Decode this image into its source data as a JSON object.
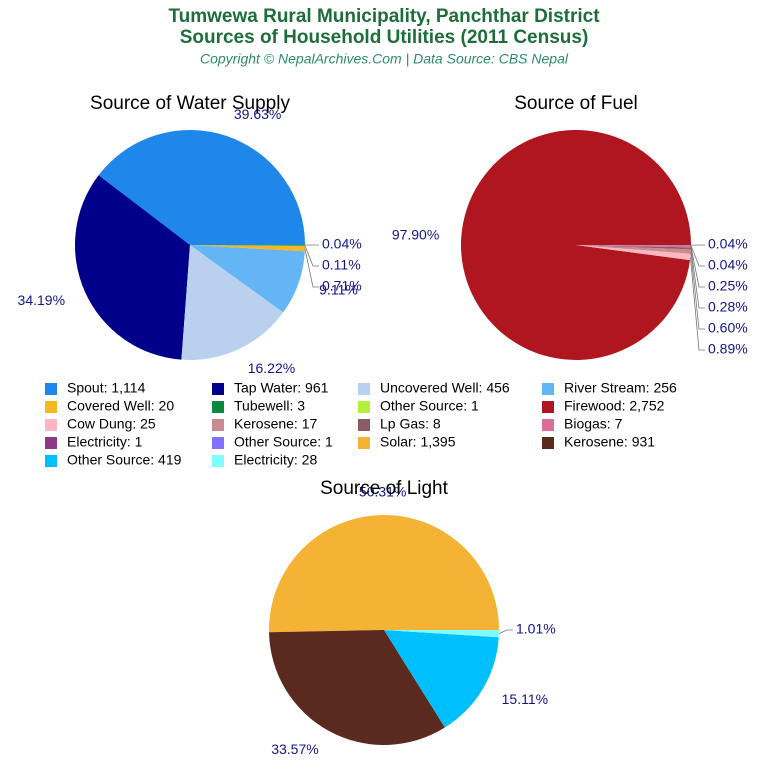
{
  "header": {
    "title": [
      "Tumwewa Rural Municipality, Panchthar District",
      "Sources of Household Utilities (2011 Census)"
    ],
    "subtitle": "Copyright © NepalArchives.Com | Data Source: CBS Nepal"
  },
  "chart_data": [
    {
      "type": "pie",
      "title": "Source of Water Supply",
      "categories": [
        "Spout: 1,114",
        "Tap Water: 961",
        "Uncovered Well: 456",
        "River Stream: 256",
        "Covered Well: 20",
        "Tubewell: 3",
        "Other Source: 1"
      ],
      "values": [
        39.63,
        34.19,
        16.22,
        9.11,
        0.71,
        0.11,
        0.04
      ],
      "value_labels": [
        "39.63%",
        "34.19%",
        "16.22%",
        "9.11%",
        "0.71%",
        "0.11%",
        "0.04%"
      ],
      "colors": [
        "#1f87ea",
        "#00008b",
        "#b9d1ee",
        "#64b5f6",
        "#f5b820",
        "#0b8a3e",
        "#b5ef3a"
      ]
    },
    {
      "type": "pie",
      "title": "Source of Fuel",
      "categories": [
        "Firewood: 2,752",
        "Cow Dung: 25",
        "Kerosene: 17",
        "Lp Gas: 8",
        "Biogas: 7",
        "Electricity: 1",
        "Other Source: 1"
      ],
      "values": [
        97.9,
        0.89,
        0.6,
        0.28,
        0.25,
        0.04,
        0.04
      ],
      "value_labels": [
        "97.90%",
        "0.89%",
        "0.60%",
        "0.28%",
        "0.25%",
        "0.04%",
        "0.04%"
      ],
      "colors": [
        "#b0161f",
        "#ffb6c1",
        "#c98a92",
        "#8b5a62",
        "#db7093",
        "#8b3a8b",
        "#8470ff"
      ]
    },
    {
      "type": "pie",
      "title": "Source of Light",
      "categories": [
        "Solar: 1,395",
        "Kerosene: 931",
        "Other Source: 419",
        "Electricity: 28"
      ],
      "values": [
        50.31,
        33.57,
        15.11,
        1.01
      ],
      "value_labels": [
        "50.31%",
        "33.57%",
        "15.11%",
        "1.01%"
      ],
      "colors": [
        "#f5b335",
        "#5a2a1e",
        "#00bfff",
        "#7ffcff"
      ]
    }
  ]
}
